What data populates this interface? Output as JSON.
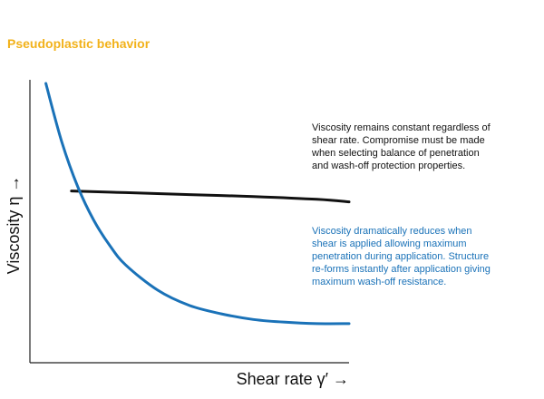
{
  "title": "Pseudoplastic behavior",
  "colors": {
    "title": "#f2b21b",
    "black_series": "#111111",
    "blue_series": "#1a72b8",
    "axis": "#222222"
  },
  "annotations": {
    "black": "Viscosity remains constant regardless of\nshear rate. Compromise must be made\nwhen selecting balance of penetration\nand wash-off protection properties.",
    "blue": "Viscosity dramatically reduces when\nshear is applied allowing maximum\npenetration during application. Structure\nre-forms instantly after application giving\nmaximum wash-off resistance."
  },
  "chart_data": {
    "type": "line",
    "title": "Pseudoplastic behavior",
    "xlabel": "Shear rate γ′ →",
    "ylabel": "Viscosity η →",
    "xlim": [
      0,
      10
    ],
    "ylim": [
      0,
      10
    ],
    "grid": false,
    "series": [
      {
        "color": "#111111",
        "x": [
          1.3,
          3,
          5,
          7,
          9,
          10
        ],
        "y": [
          6.15,
          6.09,
          6.02,
          5.95,
          5.85,
          5.76
        ]
      },
      {
        "color": "#1a72b8",
        "x": [
          0.5,
          1.0,
          1.5,
          2.0,
          2.5,
          3.0,
          4.0,
          5.0,
          6.0,
          7.0,
          8.0,
          9.0,
          10.0
        ],
        "y": [
          10.0,
          7.9,
          6.3,
          5.1,
          4.2,
          3.5,
          2.6,
          2.05,
          1.75,
          1.55,
          1.45,
          1.4,
          1.4
        ]
      }
    ]
  }
}
